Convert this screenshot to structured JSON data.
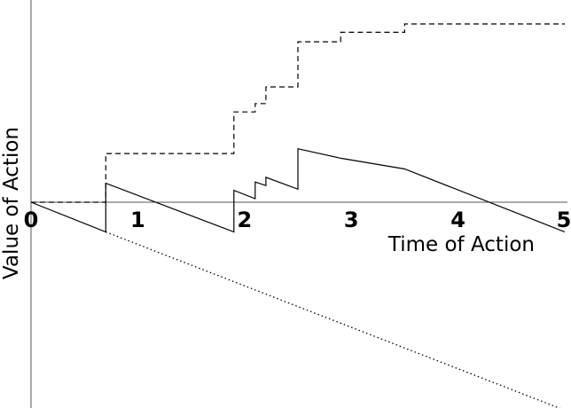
{
  "chart_data": {
    "type": "line",
    "xlabel": "Time of Action",
    "ylabel": "Value of Action",
    "xlim": [
      0,
      5
    ],
    "ylim": [
      -1.8,
      1.65
    ],
    "x_ticks": [
      "0",
      "1",
      "2",
      "3",
      "4",
      "5"
    ],
    "grid": false,
    "series": [
      {
        "style": "solid",
        "points": [
          [
            0,
            0
          ],
          [
            0.7,
            -0.25
          ],
          [
            0.7,
            0.16
          ],
          [
            1.9,
            -0.25
          ],
          [
            1.9,
            0.1
          ],
          [
            2.1,
            0.03
          ],
          [
            2.1,
            0.17
          ],
          [
            2.2,
            0.14
          ],
          [
            2.2,
            0.21
          ],
          [
            2.5,
            0.11
          ],
          [
            2.5,
            0.45
          ],
          [
            2.9,
            0.37
          ],
          [
            2.9,
            0.37
          ],
          [
            3.5,
            0.28
          ],
          [
            3.5,
            0.28
          ],
          [
            5.0,
            -0.25
          ]
        ]
      },
      {
        "style": "dashed",
        "points": [
          [
            0,
            0
          ],
          [
            0.7,
            0
          ],
          [
            0.7,
            0.41
          ],
          [
            1.9,
            0.41
          ],
          [
            1.9,
            0.76
          ],
          [
            2.1,
            0.76
          ],
          [
            2.1,
            0.83
          ],
          [
            2.2,
            0.83
          ],
          [
            2.2,
            0.97
          ],
          [
            2.5,
            0.97
          ],
          [
            2.5,
            1.35
          ],
          [
            2.9,
            1.35
          ],
          [
            2.9,
            1.43
          ],
          [
            3.5,
            1.43
          ],
          [
            3.5,
            1.5
          ],
          [
            5.0,
            1.5
          ]
        ]
      },
      {
        "style": "dotted",
        "points": [
          [
            0.7,
            -0.25
          ],
          [
            5.0,
            -1.75
          ]
        ]
      }
    ]
  }
}
